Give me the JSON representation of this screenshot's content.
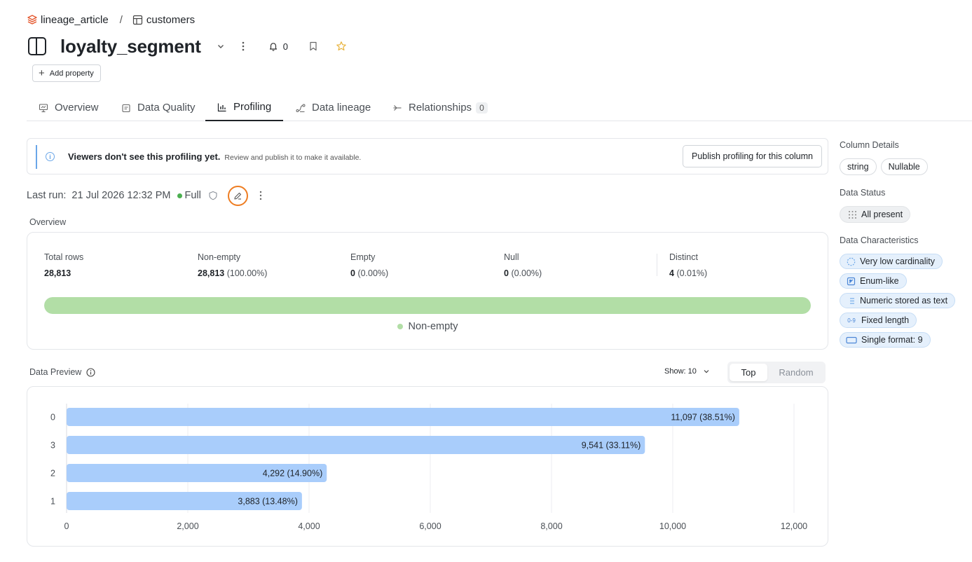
{
  "breadcrumb": {
    "project": "lineage_article",
    "separator": "/",
    "table": "customers"
  },
  "header": {
    "title": "loyalty_segment",
    "notifications_count": "0",
    "add_property_label": "Add property"
  },
  "tabs": [
    {
      "label": "Overview",
      "icon": "presentation-icon"
    },
    {
      "label": "Data Quality",
      "icon": "quality-icon"
    },
    {
      "label": "Profiling",
      "icon": "bar-chart-icon",
      "active": true
    },
    {
      "label": "Data lineage",
      "icon": "lineage-icon"
    },
    {
      "label": "Relationships",
      "icon": "relationship-icon",
      "count": "0"
    }
  ],
  "notice": {
    "message": "Viewers don't see this profiling yet.",
    "sub": "Review and publish it to make it available.",
    "publish_label": "Publish profiling for this column"
  },
  "last_run": {
    "label": "Last run:",
    "date": "21 Jul 2026 12:32 PM",
    "mode": "Full"
  },
  "overview": {
    "heading": "Overview",
    "stats": [
      {
        "label": "Total rows",
        "value": "28,813",
        "pct": ""
      },
      {
        "label": "Non-empty",
        "value": "28,813",
        "pct": "(100.00%)"
      },
      {
        "label": "Empty",
        "value": "0",
        "pct": "(0.00%)"
      },
      {
        "label": "Null",
        "value": "0",
        "pct": "(0.00%)"
      },
      {
        "label": "Distinct",
        "value": "4",
        "pct": "(0.01%)"
      }
    ],
    "non_empty_fraction": 1.0,
    "legend_label": "Non-empty",
    "fill_color": "#b2dea6"
  },
  "preview": {
    "heading": "Data Preview",
    "show_label": "Show: 10",
    "toggle": {
      "top": "Top",
      "random": "Random",
      "selected": "Top"
    }
  },
  "chart_data": {
    "type": "bar",
    "orientation": "horizontal",
    "categories": [
      "0",
      "3",
      "2",
      "1"
    ],
    "values": [
      11097,
      9541,
      4292,
      3883
    ],
    "labels": [
      "11,097 (38.51%)",
      "9,541 (33.11%)",
      "4,292 (14.90%)",
      "3,883 (13.48%)"
    ],
    "xlim": [
      0,
      12000
    ],
    "xticks": [
      0,
      2000,
      4000,
      6000,
      8000,
      10000,
      12000
    ],
    "xtick_labels": [
      "0",
      "2,000",
      "4,000",
      "6,000",
      "8,000",
      "10,000",
      "12,000"
    ],
    "grid": true,
    "bar_color": "#a9cdfb"
  },
  "sidebar": {
    "column_details": {
      "heading": "Column Details",
      "chips": [
        "string",
        "Nullable"
      ]
    },
    "data_status": {
      "heading": "Data Status",
      "chip": "All present"
    },
    "data_characteristics": {
      "heading": "Data Characteristics",
      "chips": [
        {
          "label": "Very low cardinality",
          "icon": "dashed-circle-icon"
        },
        {
          "label": "Enum-like",
          "icon": "enum-icon"
        },
        {
          "label": "Numeric stored as text",
          "icon": "list-icon"
        },
        {
          "label": "Fixed length",
          "icon": "digits-icon",
          "icon_text": "0-9"
        },
        {
          "label": "Single format: 9",
          "icon": "format-icon"
        }
      ]
    }
  }
}
